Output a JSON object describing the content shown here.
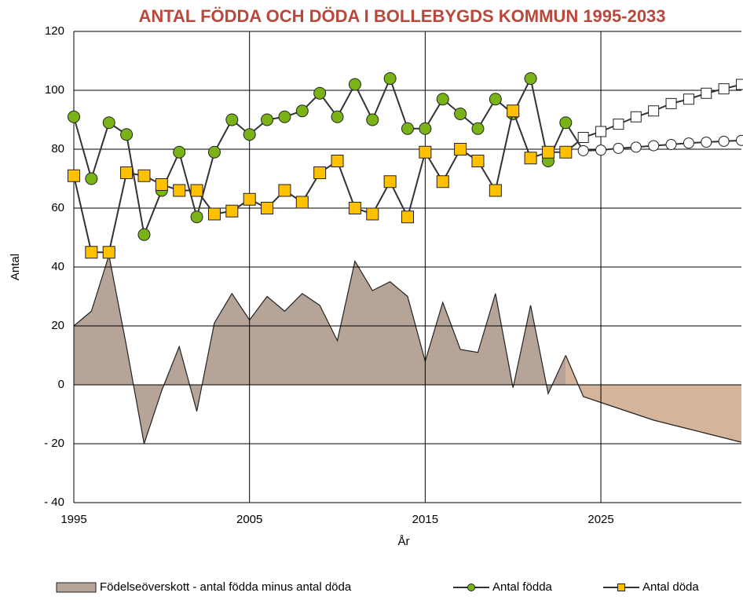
{
  "chart_data": {
    "type": "line",
    "title": "ANTAL FÖDDA OCH DÖDA I BOLLEBYGDS KOMMUN 1995-2033",
    "xlabel": "År",
    "ylabel": "Antal",
    "xlim": [
      1995,
      2033
    ],
    "xticks": [
      1995,
      2005,
      2015,
      2025
    ],
    "ylim": [
      -40,
      120
    ],
    "yticks": [
      {
        "value": -40,
        "label": "- 40"
      },
      {
        "value": -20,
        "label": "- 20"
      },
      0,
      20,
      40,
      60,
      80,
      100,
      120
    ],
    "grid": true,
    "legend": "bottom",
    "series": [
      {
        "name": "Födelseöverskott - antal födda minus antal döda",
        "style": "area",
        "color": "#b5a497",
        "x": [
          1995,
          1996,
          1997,
          1998,
          1999,
          2000,
          2001,
          2002,
          2003,
          2004,
          2005,
          2006,
          2007,
          2008,
          2009,
          2010,
          2011,
          2012,
          2013,
          2014,
          2015,
          2016,
          2017,
          2018,
          2019,
          2020,
          2021,
          2022,
          2023
        ],
        "values": [
          20,
          25,
          44,
          13,
          -20,
          -2,
          13,
          -9,
          21,
          31,
          22,
          30,
          25,
          31,
          27,
          15,
          42,
          32,
          35,
          30,
          8,
          28,
          12,
          11,
          31,
          -1,
          27,
          -3,
          10
        ]
      },
      {
        "style": "area",
        "color": "#d4b49a",
        "x": [
          2023,
          2024,
          2025,
          2026,
          2027,
          2028,
          2029,
          2030,
          2031,
          2032,
          2033
        ],
        "values": [
          10,
          -4,
          -6,
          -8,
          -10,
          -12,
          -13.5,
          -15,
          -16.5,
          -18,
          -19.5
        ]
      },
      {
        "style": "line",
        "marker": "square",
        "color": "#ffffff",
        "x": [
          2023,
          2024,
          2025,
          2026,
          2027,
          2028,
          2029,
          2030,
          2031,
          2032,
          2033
        ],
        "values": [
          79,
          84,
          86,
          88.5,
          91,
          93,
          95.5,
          97,
          99,
          100.5,
          102
        ]
      },
      {
        "style": "line",
        "marker": "circle",
        "color": "#ffffff",
        "x": [
          2023,
          2024,
          2025,
          2026,
          2027,
          2028,
          2029,
          2030,
          2031,
          2032,
          2033
        ],
        "values": [
          89,
          79.5,
          79.7,
          80.3,
          80.7,
          81.2,
          81.6,
          82.1,
          82.4,
          82.7,
          83
        ]
      },
      {
        "name": "Antal födda",
        "style": "line",
        "marker": "circle",
        "color": "#7ab317",
        "x": [
          1995,
          1996,
          1997,
          1998,
          1999,
          2000,
          2001,
          2002,
          2003,
          2004,
          2005,
          2006,
          2007,
          2008,
          2009,
          2010,
          2011,
          2012,
          2013,
          2014,
          2015,
          2016,
          2017,
          2018,
          2019,
          2020,
          2021,
          2022,
          2023
        ],
        "values": [
          91,
          70,
          89,
          85,
          51,
          66,
          79,
          57,
          79,
          90,
          85,
          90,
          91,
          93,
          99,
          91,
          102,
          90,
          104,
          87,
          87,
          97,
          92,
          87,
          97,
          92,
          104,
          76,
          89
        ]
      },
      {
        "name": "Antal döda",
        "style": "line",
        "marker": "square",
        "color": "#ffc000",
        "x": [
          1995,
          1996,
          1997,
          1998,
          1999,
          2000,
          2001,
          2002,
          2003,
          2004,
          2005,
          2006,
          2007,
          2008,
          2009,
          2010,
          2011,
          2012,
          2013,
          2014,
          2015,
          2016,
          2017,
          2018,
          2019,
          2020,
          2021,
          2022,
          2023
        ],
        "values": [
          71,
          45,
          45,
          72,
          71,
          68,
          66,
          66,
          58,
          59,
          63,
          60,
          66,
          62,
          72,
          76,
          60,
          58,
          69,
          57,
          79,
          69,
          80,
          76,
          66,
          93,
          77,
          79,
          79
        ]
      }
    ]
  }
}
